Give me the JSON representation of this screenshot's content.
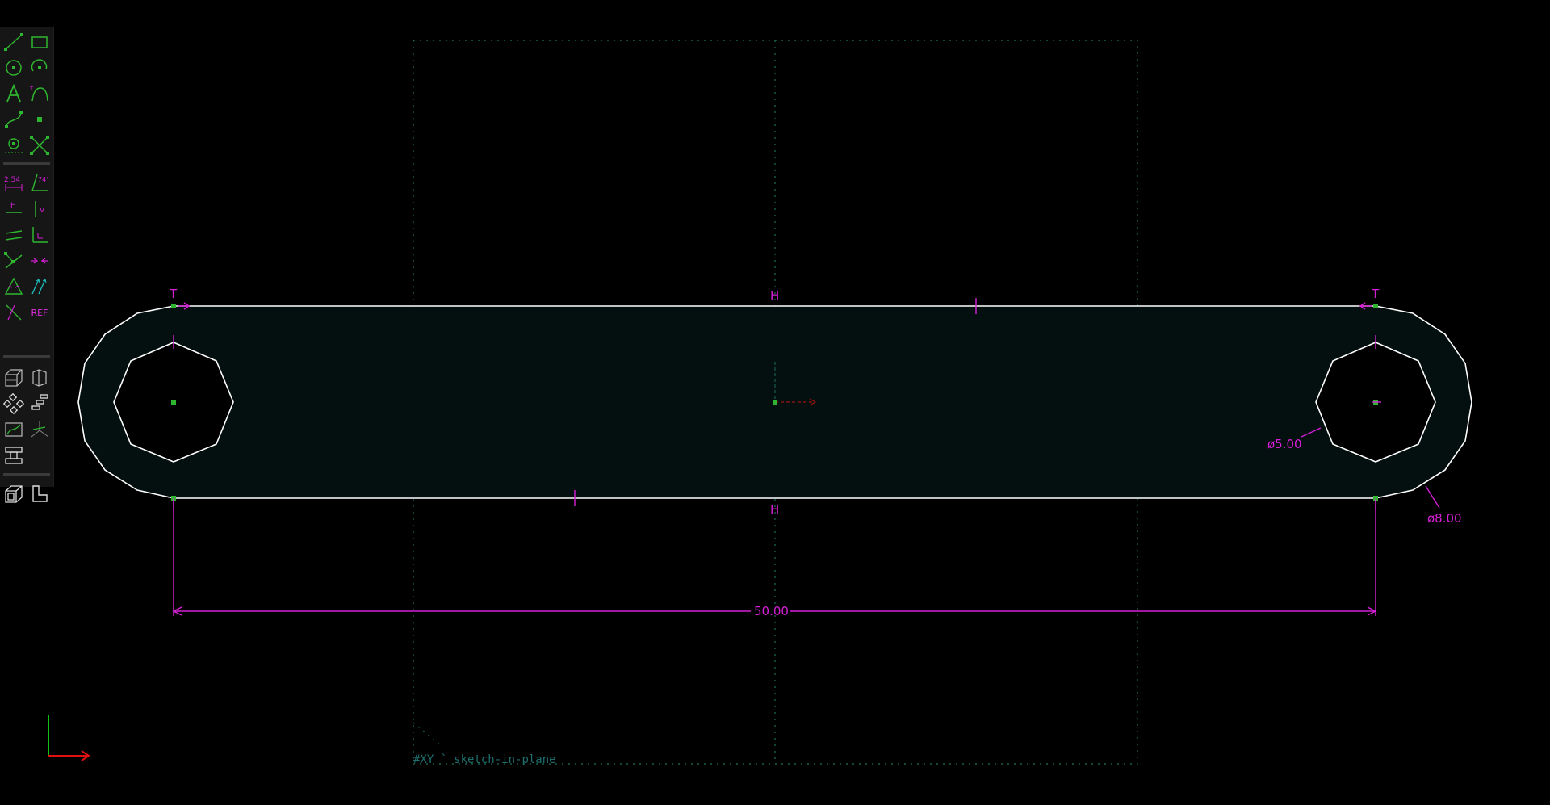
{
  "toolbar": {
    "sections": [
      {
        "name": "sketch-entities",
        "tools": [
          {
            "id": "line-segment",
            "icon": "line-segment-icon"
          },
          {
            "id": "rectangle",
            "icon": "rectangle-icon"
          },
          {
            "id": "circle",
            "icon": "circle-icon"
          },
          {
            "id": "arc",
            "icon": "arc-icon"
          },
          {
            "id": "text",
            "icon": "text-tool-icon",
            "label": "A"
          },
          {
            "id": "tangent-arc",
            "icon": "tangent-arc-icon"
          },
          {
            "id": "cubic-spline",
            "icon": "cubic-spline-icon"
          },
          {
            "id": "datum-point",
            "icon": "datum-point-icon"
          },
          {
            "id": "workplane",
            "icon": "workplane-icon"
          },
          {
            "id": "split-curves",
            "icon": "split-curves-icon"
          }
        ]
      },
      {
        "name": "constraints",
        "tools": [
          {
            "id": "distance",
            "icon": "distance-dimension-icon",
            "label": "2.54"
          },
          {
            "id": "angle",
            "icon": "angle-dimension-icon",
            "label": "74°"
          },
          {
            "id": "horizontal",
            "icon": "horizontal-constraint-icon",
            "label": "H"
          },
          {
            "id": "vertical",
            "icon": "vertical-constraint-icon",
            "label": "V"
          },
          {
            "id": "parallel",
            "icon": "parallel-constraint-icon"
          },
          {
            "id": "perpendicular",
            "icon": "perpendicular-constraint-icon"
          },
          {
            "id": "point-on-line",
            "icon": "point-on-line-icon"
          },
          {
            "id": "symmetric",
            "icon": "symmetric-constraint-icon"
          },
          {
            "id": "equal",
            "icon": "equal-length-icon"
          },
          {
            "id": "same-orientation",
            "icon": "same-orientation-icon"
          },
          {
            "id": "other-supplementary",
            "icon": "other-angle-icon"
          },
          {
            "id": "reference",
            "icon": "reference-toggle-icon",
            "label": "REF"
          }
        ]
      },
      {
        "name": "groups",
        "tools": [
          {
            "id": "extrude",
            "icon": "extrude-icon"
          },
          {
            "id": "lathe",
            "icon": "lathe-icon"
          },
          {
            "id": "step-rotate",
            "icon": "step-rotate-icon"
          },
          {
            "id": "step-translate",
            "icon": "step-translate-icon"
          },
          {
            "id": "sketch-in-plane",
            "icon": "sketch-in-plane-icon"
          },
          {
            "id": "sketch-in-3d",
            "icon": "sketch-in-3d-icon"
          },
          {
            "id": "link-import",
            "icon": "link-import-icon"
          }
        ]
      },
      {
        "name": "views",
        "tools": [
          {
            "id": "nearest-iso",
            "icon": "nearest-iso-view-icon"
          },
          {
            "id": "nearest-ortho",
            "icon": "nearest-ortho-view-icon"
          }
        ]
      }
    ]
  },
  "sketch": {
    "overall_length": "50.00",
    "dim_length_label": "50.00",
    "small_hole_diameter_label": "ø5.00",
    "end_diameter_label": "ø8.00",
    "constraint_labels": {
      "horizontal_top": "H",
      "horizontal_bottom": "H",
      "tangent_left": "T",
      "tangent_right": "T"
    },
    "workplane_label": "#XY",
    "group_label": "sketch-in-plane"
  },
  "colors": {
    "background": "#000000",
    "entity": "#ffffff",
    "constraint": "#d61fd6",
    "point": "#2fb52f",
    "workplane": "#1e6e5a",
    "region_fill": "#040f0f",
    "axis_x": "#e01010",
    "axis_y": "#10c010"
  }
}
